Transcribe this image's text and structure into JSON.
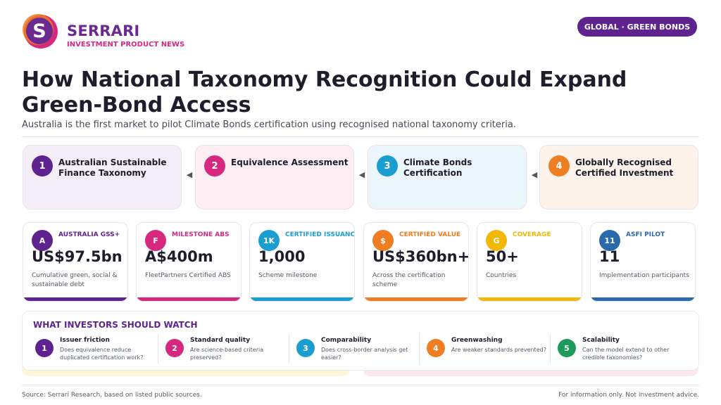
{
  "brand": {
    "logo_letter": "S",
    "name": "SERRARI",
    "subtitle": "INVESTMENT PRODUCT NEWS"
  },
  "tag": "GLOBAL · GREEN BONDS",
  "title": "How National Taxonomy Recognition Could Expand Green-Bond Access",
  "subtitle": "Australia is the first market to pilot Climate Bonds certification using recognised national taxonomy criteria.",
  "steps": [
    {
      "num": "1",
      "label": "Australian Sustainable Finance Taxonomy",
      "color": "#5f2390",
      "bg": "#f3eef7"
    },
    {
      "num": "2",
      "label": "Equivalence Assessment",
      "color": "#d6287f",
      "bg": "#fdeef3"
    },
    {
      "num": "3",
      "label": "Climate Bonds Certification",
      "color": "#1b9dd0",
      "bg": "#eaf6fb"
    },
    {
      "num": "4",
      "label": "Globally Recognised Certified Investment",
      "color": "#ef7d22",
      "bg": "#fef3ea"
    }
  ],
  "arrow_glyph": "◀",
  "stats": [
    {
      "badge": "A",
      "category": "AUSTRALIA GSS+",
      "value": "US$97.5bn",
      "desc": "Cumulative green, social & sustainable debt",
      "color": "#5f2390"
    },
    {
      "badge": "F",
      "category": "MILESTONE ABS",
      "value": "A$400m",
      "desc": "FleetPartners Certified ABS",
      "color": "#d6287f"
    },
    {
      "badge": "1K",
      "category": "CERTIFIED ISSUANCES",
      "value": "1,000",
      "desc": "Scheme milestone",
      "color": "#1b9dd0"
    },
    {
      "badge": "$",
      "category": "CERTIFIED VALUE",
      "value": "US$360bn+",
      "desc": "Across the certification scheme",
      "color": "#ef7d22"
    },
    {
      "badge": "G",
      "category": "COVERAGE",
      "value": "50+",
      "desc": "Countries",
      "color": "#f2b807"
    },
    {
      "badge": "11",
      "category": "ASFI PILOT",
      "value": "11",
      "desc": "Implementation participants",
      "color": "#2a6aa8"
    }
  ],
  "watch": {
    "title": "WHAT INVESTORS SHOULD WATCH",
    "items": [
      {
        "num": "1",
        "heading": "Issuer friction",
        "text": "Does equivalence reduce duplicated certification work?",
        "color": "#5f2390"
      },
      {
        "num": "2",
        "heading": "Standard quality",
        "text": "Are science-based criteria preserved?",
        "color": "#d6287f"
      },
      {
        "num": "3",
        "heading": "Comparability",
        "text": "Does cross-border analysis get easier?",
        "color": "#1b9dd0"
      },
      {
        "num": "4",
        "heading": "Greenwashing",
        "text": "Are weaker standards prevented?",
        "color": "#ef7d22"
      },
      {
        "num": "5",
        "heading": "Scalability",
        "text": "Can the model extend to other credible taxonomies?",
        "color": "#1f9a5a"
      }
    ]
  },
  "footer": {
    "source": "Source: Serrari Research, based on listed public sources.",
    "disclaimer": "For information only. Not investment advice."
  }
}
